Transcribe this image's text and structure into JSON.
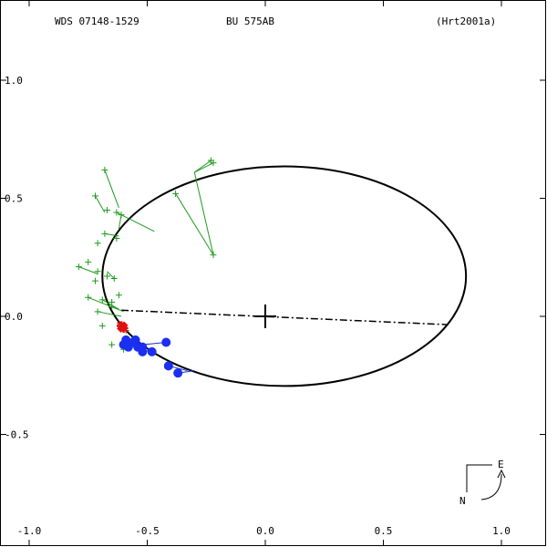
{
  "header": {
    "left": "WDS 07148-1529",
    "center": "BU  575AB",
    "right": "(Hrt2001a)"
  },
  "compass": {
    "east": "E",
    "north": "N"
  },
  "chart_data": {
    "type": "scatter",
    "xlim": [
      -1.0,
      1.0
    ],
    "ylim": [
      -0.7,
      1.2
    ],
    "x_ticks": [
      -1.0,
      -0.5,
      0.0,
      0.5,
      1.0
    ],
    "x_tick_labels": [
      "-1.0",
      "-0.5",
      "0.0",
      "0.5",
      "1.0"
    ],
    "y_ticks": [
      1.0,
      0.5,
      0.0,
      -0.5
    ],
    "y_tick_labels": [
      "1.0",
      "0.5",
      "0.0",
      "-0.5"
    ],
    "y_axis_inverted": true,
    "primary": [
      0,
      0
    ],
    "orbit": {
      "center": [
        0.08,
        0.17
      ],
      "rx": 0.77,
      "ry": 0.465
    },
    "line_of_nodes": [
      [
        -0.61,
        0.026
      ],
      [
        0.77,
        -0.035
      ]
    ],
    "micrometer_points": [
      [
        -0.68,
        0.62
      ],
      [
        -0.72,
        0.51
      ],
      [
        -0.63,
        0.44
      ],
      [
        -0.67,
        0.45
      ],
      [
        -0.61,
        0.43
      ],
      [
        -0.68,
        0.35
      ],
      [
        -0.63,
        0.33
      ],
      [
        -0.71,
        0.31
      ],
      [
        -0.75,
        0.23
      ],
      [
        -0.79,
        0.21
      ],
      [
        -0.71,
        0.19
      ],
      [
        -0.67,
        0.17
      ],
      [
        -0.72,
        0.15
      ],
      [
        -0.64,
        0.16
      ],
      [
        -0.75,
        0.08
      ],
      [
        -0.69,
        0.07
      ],
      [
        -0.65,
        0.06
      ],
      [
        -0.62,
        0.09
      ],
      [
        -0.71,
        0.02
      ],
      [
        -0.69,
        -0.04
      ],
      [
        -0.65,
        -0.12
      ],
      [
        -0.6,
        -0.14
      ],
      [
        -0.59,
        -0.06
      ],
      [
        -0.65,
        0.04
      ]
    ],
    "micrometer_residuals": [
      [
        -0.68,
        0.62,
        -0.62,
        0.46
      ],
      [
        -0.72,
        0.51,
        -0.68,
        0.44
      ],
      [
        -0.63,
        0.44,
        -0.47,
        0.36
      ],
      [
        -0.61,
        0.43,
        -0.62,
        0.37
      ],
      [
        -0.68,
        0.35,
        -0.62,
        0.34
      ],
      [
        -0.79,
        0.21,
        -0.71,
        0.18
      ],
      [
        -0.75,
        0.08,
        -0.6,
        0.02
      ],
      [
        -0.71,
        0.02,
        -0.61,
        0.0
      ],
      [
        -0.69,
        0.07,
        -0.62,
        0.03
      ],
      [
        -0.64,
        0.16,
        -0.67,
        0.19
      ]
    ],
    "outlier_points": [
      [
        -0.23,
        0.66
      ],
      [
        -0.22,
        0.65
      ],
      [
        -0.38,
        0.52
      ],
      [
        -0.22,
        0.26
      ]
    ],
    "outlier_residuals": [
      [
        -0.23,
        0.66,
        -0.3,
        0.61
      ],
      [
        -0.22,
        0.65,
        -0.3,
        0.61
      ],
      [
        -0.38,
        0.52,
        -0.22,
        0.26
      ],
      [
        -0.22,
        0.26,
        -0.3,
        0.61
      ]
    ],
    "speckle_points": [
      [
        -0.59,
        -0.1
      ],
      [
        -0.6,
        -0.12
      ],
      [
        -0.56,
        -0.11
      ],
      [
        -0.54,
        -0.13
      ],
      [
        -0.52,
        -0.13
      ],
      [
        -0.52,
        -0.15
      ],
      [
        -0.48,
        -0.15
      ],
      [
        -0.42,
        -0.11
      ],
      [
        -0.41,
        -0.21
      ],
      [
        -0.37,
        -0.24
      ],
      [
        -0.55,
        -0.1
      ],
      [
        -0.58,
        -0.13
      ]
    ],
    "speckle_residuals": [
      [
        -0.42,
        -0.11,
        -0.52,
        -0.12
      ],
      [
        -0.41,
        -0.21,
        -0.33,
        -0.23
      ],
      [
        -0.37,
        -0.24,
        -0.3,
        -0.23
      ],
      [
        -0.48,
        -0.15,
        -0.53,
        -0.14
      ]
    ],
    "recent_points": [
      [
        -0.61,
        -0.04
      ],
      [
        -0.6,
        -0.05
      ],
      [
        -0.605,
        -0.045
      ]
    ]
  }
}
